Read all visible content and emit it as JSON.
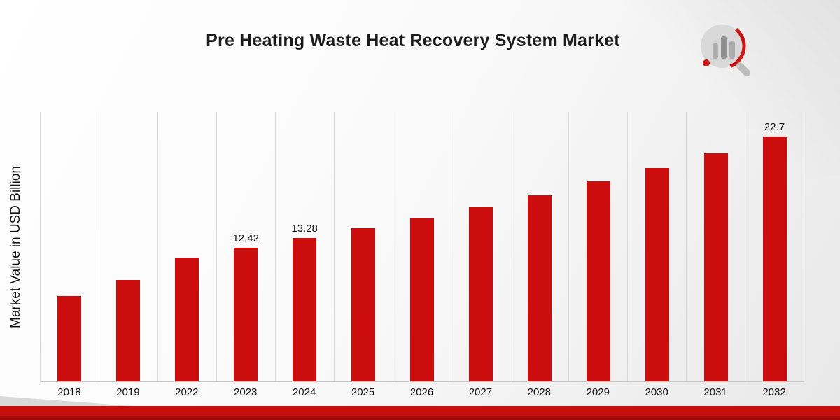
{
  "title": "Pre Heating Waste Heat Recovery System Market",
  "y_axis_label": "Market Value in USD Billion",
  "logo": {
    "name": "market-research-company-logo"
  },
  "colors": {
    "bar": "#cc0d0d",
    "ribbon": "#c60e0e",
    "ribbon_dark": "#a50b0b",
    "grid": "#d9d9d9",
    "axis": "#c4c4c4"
  },
  "chart_data": {
    "type": "bar",
    "title": "Pre Heating Waste Heat Recovery System Market",
    "xlabel": "",
    "ylabel": "Market Value in USD Billion",
    "ylim": [
      0,
      25
    ],
    "grid": "vertical-only",
    "legend": "none",
    "categories": [
      "2018",
      "2019",
      "2022",
      "2023",
      "2024",
      "2025",
      "2026",
      "2027",
      "2028",
      "2029",
      "2030",
      "2031",
      "2032"
    ],
    "values": [
      7.9,
      9.4,
      11.5,
      12.42,
      13.28,
      14.2,
      15.1,
      16.2,
      17.3,
      18.6,
      19.8,
      21.2,
      22.7
    ],
    "data_labels": {
      "2023": "12.42",
      "2024": "13.28",
      "2032": "22.7"
    }
  }
}
